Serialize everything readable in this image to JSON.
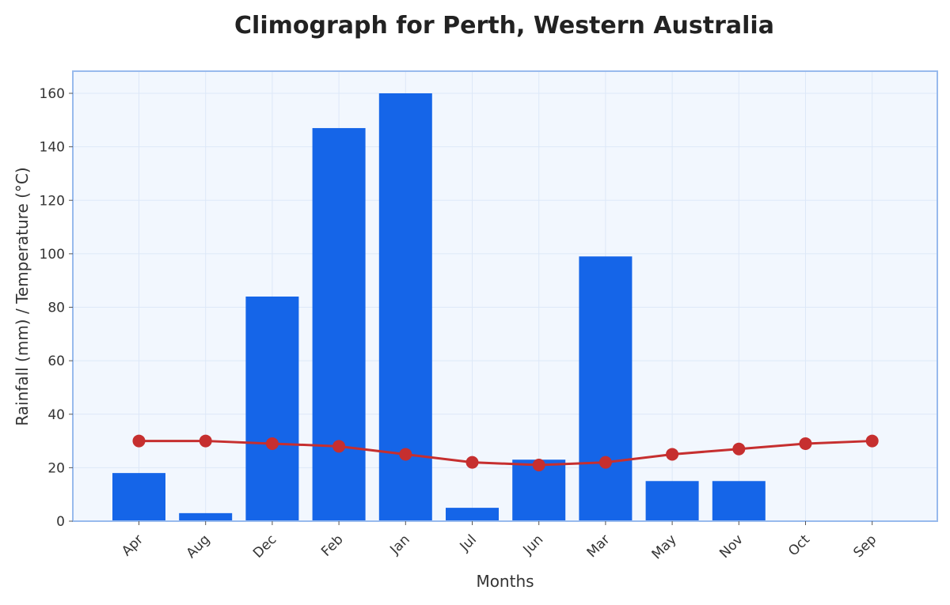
{
  "chart_data": {
    "type": "bar",
    "title": "Climograph for Perth, Western Australia",
    "xlabel": "Months",
    "ylabel": "Rainfall (mm) / Temperature (°C)",
    "categories": [
      "Apr",
      "Aug",
      "Dec",
      "Feb",
      "Jan",
      "Jul",
      "Jun",
      "Mar",
      "May",
      "Nov",
      "Oct",
      "Sep"
    ],
    "series": [
      {
        "type": "bar",
        "values": [
          18,
          3,
          84,
          147,
          160,
          5,
          23,
          99,
          15,
          15,
          0,
          0
        ]
      },
      {
        "type": "line",
        "values": [
          30,
          30,
          29,
          28,
          25,
          22,
          21,
          22,
          25,
          27,
          29,
          30
        ]
      }
    ],
    "ylim": [
      0,
      168
    ],
    "yticks": [
      0,
      20,
      40,
      60,
      80,
      100,
      120,
      140,
      160
    ],
    "grid": true,
    "colors": {
      "bar": "#1565e8",
      "line": "#c62f2f",
      "plot_bg": "#f2f7fe",
      "plot_border": "#98baed",
      "grid": "#dde8f8"
    }
  }
}
